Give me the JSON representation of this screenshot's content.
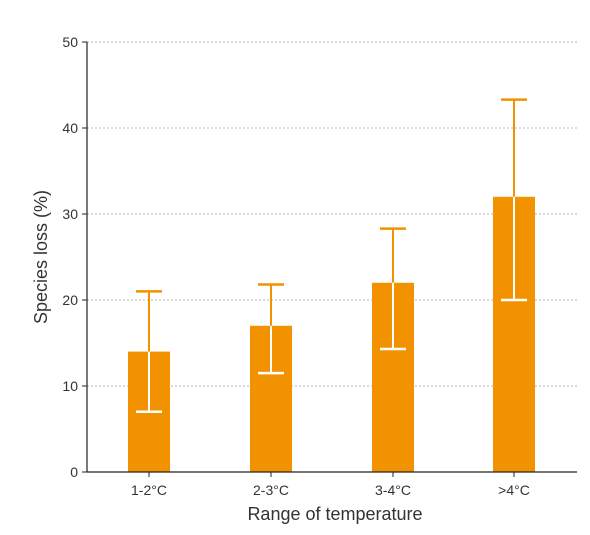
{
  "chart_data": {
    "type": "bar",
    "title": "",
    "xlabel": "Range of temperature",
    "ylabel": "Species loss (%)",
    "categories": [
      "1-2°C",
      "2-3°C",
      "3-4°C",
      ">4°C"
    ],
    "values": [
      14,
      17,
      22,
      32
    ],
    "error_low": [
      7,
      11.5,
      14.3,
      20
    ],
    "error_high": [
      21,
      21.8,
      28.3,
      43.3
    ],
    "ylim": [
      0,
      50
    ],
    "yticks": [
      "0",
      "10",
      "20",
      "30",
      "40",
      "50"
    ],
    "grid": true,
    "bar_color": "#F39200",
    "error_bar_color_on_bar": "#ffffff",
    "error_bar_color_off_bar": "#F39200"
  }
}
